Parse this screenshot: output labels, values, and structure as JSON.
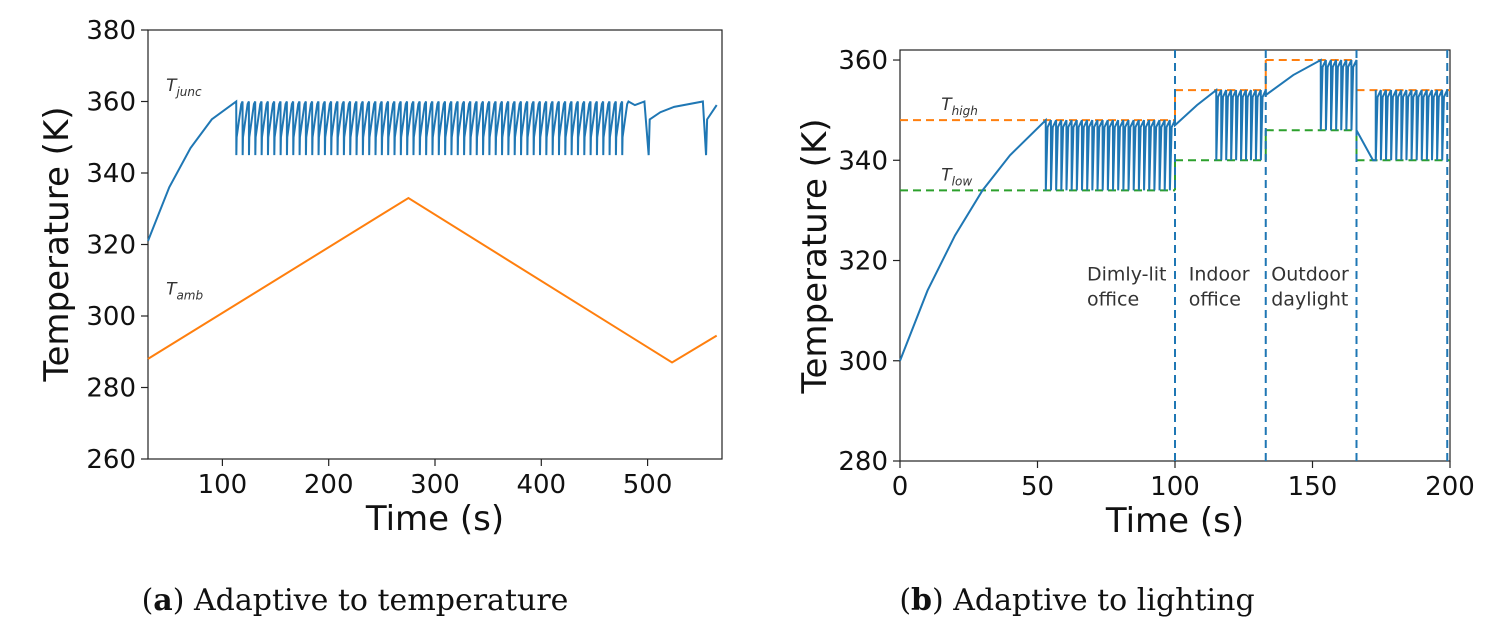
{
  "chart_data": [
    {
      "type": "line",
      "caption": {
        "open": "(",
        "letter": "a",
        "close": ")",
        "text": " Adaptive to temperature"
      },
      "xlabel": "Time (s)",
      "ylabel": "Temperature (K)",
      "xlim": [
        30,
        570
      ],
      "ylim": [
        260,
        380
      ],
      "xticks": [
        100,
        200,
        300,
        400,
        500
      ],
      "yticks": [
        260,
        280,
        300,
        320,
        340,
        360,
        380
      ],
      "grid": false,
      "annotations": [
        {
          "main": "T",
          "sub": "junc",
          "x": 47,
          "y": 363
        },
        {
          "main": "T",
          "sub": "amb",
          "x": 47,
          "y": 306
        }
      ],
      "series": [
        {
          "color": "#1f77b4",
          "rise": {
            "x": [
              30,
              50,
              70,
              90,
              113
            ],
            "y": [
              321,
              336,
              347,
              355,
              360
            ]
          },
          "oscillation": {
            "x_start": 113,
            "x_end": 482,
            "count": 62,
            "high": 360,
            "low": 345,
            "fall_duration": 2.5
          },
          "tail": [
            [
              482,
              360
            ],
            [
              488,
              359
            ],
            [
              497,
              360
            ],
            [
              501,
              345
            ],
            [
              502,
              355
            ],
            [
              512,
              357
            ],
            [
              525,
              358.5
            ],
            [
              552,
              360
            ],
            [
              555,
              345
            ],
            [
              556,
              355
            ],
            [
              565,
              359
            ]
          ]
        },
        {
          "color": "#ff7f0e",
          "x": [
            30,
            275,
            523,
            565
          ],
          "y": [
            288,
            333,
            287,
            294.5
          ]
        }
      ]
    },
    {
      "type": "line",
      "caption": {
        "open": "(",
        "letter": "b",
        "close": ")",
        "text": " Adaptive to lighting"
      },
      "xlabel": "Time (s)",
      "ylabel": "Temperature (K)",
      "xlim": [
        0,
        200
      ],
      "ylim": [
        280,
        362
      ],
      "xticks": [
        0,
        50,
        100,
        150,
        200
      ],
      "yticks": [
        280,
        300,
        320,
        340,
        360
      ],
      "grid": false,
      "annotations": [
        {
          "main": "T",
          "sub": "high",
          "x": 15,
          "y": 350
        },
        {
          "main": "T",
          "sub": "low",
          "x": 15,
          "y": 336
        }
      ],
      "region_labels": [
        {
          "lines": [
            "Dimly-lit",
            "office"
          ],
          "x": 68
        },
        {
          "lines": [
            "Indoor",
            "office"
          ],
          "x": 105
        },
        {
          "lines": [
            "Outdoor",
            "daylight"
          ],
          "x": 135
        }
      ],
      "region_label_y": [
        316,
        311
      ],
      "boundaries": [
        100,
        133,
        166,
        199
      ],
      "thresholds": {
        "high": {
          "color": "#ff7f0e",
          "segments": [
            [
              0,
              100,
              348
            ],
            [
              100,
              133,
              354
            ],
            [
              133,
              166,
              360
            ],
            [
              166,
              200,
              354
            ]
          ]
        },
        "low": {
          "color": "#2ca02c",
          "segments": [
            [
              0,
              100,
              334
            ],
            [
              100,
              133,
              340
            ],
            [
              133,
              166,
              346
            ],
            [
              166,
              200,
              340
            ]
          ]
        }
      },
      "series": [
        {
          "color": "#1f77b4",
          "segments": [
            {
              "rise": [
                [
                  0,
                  300
                ],
                [
                  10,
                  314
                ],
                [
                  20,
                  325
                ],
                [
                  30,
                  334
                ],
                [
                  40,
                  341
                ],
                [
                  53,
                  348
                ]
              ],
              "osc": {
                "x0": 53,
                "x1": 100,
                "high": 348,
                "low": 334,
                "count": 25
              }
            },
            {
              "rise": [
                [
                  100,
                  347
                ],
                [
                  108,
                  351
                ],
                [
                  115,
                  354
                ]
              ],
              "osc": {
                "x0": 115,
                "x1": 133,
                "high": 354,
                "low": 340,
                "count": 10
              }
            },
            {
              "rise": [
                [
                  133,
                  353
                ],
                [
                  143,
                  357
                ],
                [
                  153,
                  360
                ]
              ],
              "osc": {
                "x0": 153,
                "x1": 166,
                "high": 360,
                "low": 346,
                "count": 7
              }
            },
            {
              "rise": [
                [
                  166,
                  346
                ],
                [
                  172,
                  340
                ],
                [
                  173,
                  340
                ]
              ],
              "osc": {
                "x0": 173,
                "x1": 199,
                "high": 354,
                "low": 340,
                "count": 14
              }
            }
          ]
        }
      ]
    }
  ]
}
